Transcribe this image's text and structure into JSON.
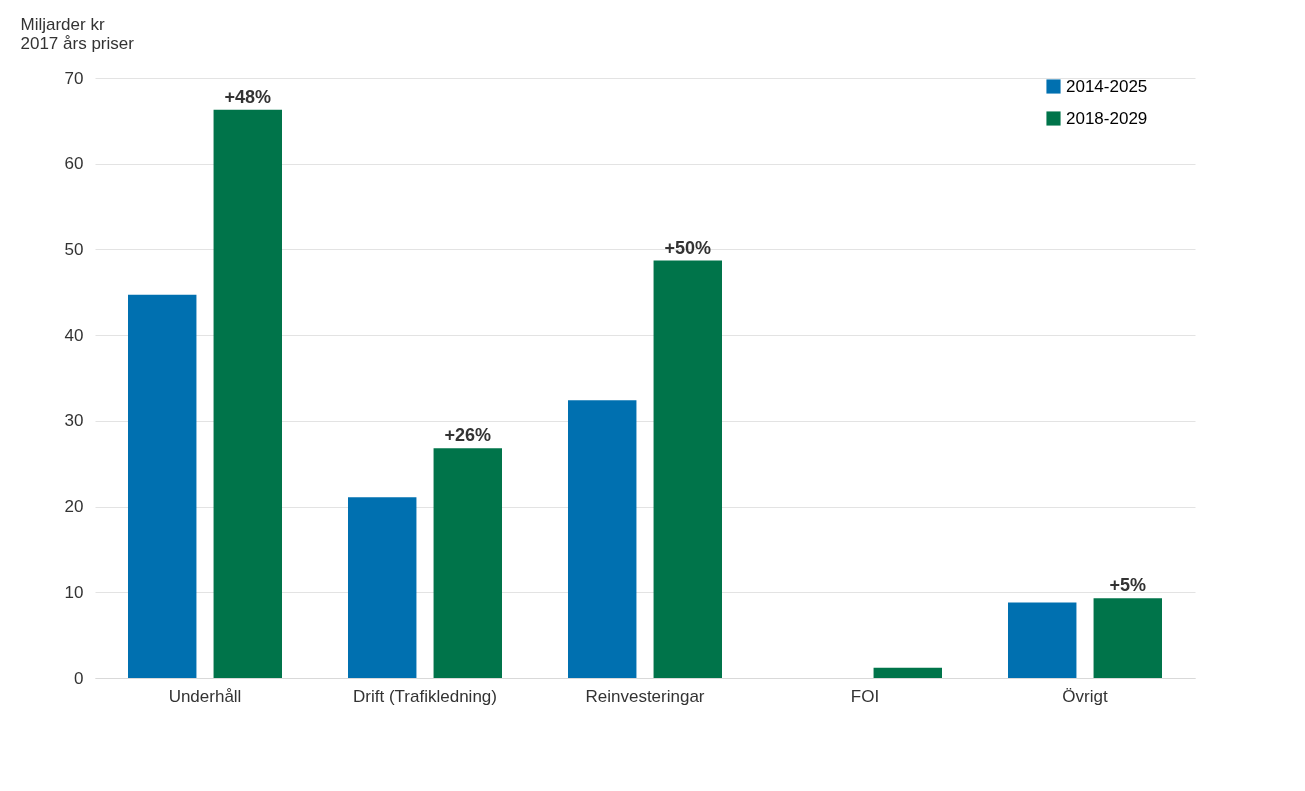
{
  "chart_data": {
    "type": "bar",
    "ylabel": "Miljarder kr\n2017 års priser",
    "categories": [
      "Underhåll",
      "Drift (Trafikledning)",
      "Reinvesteringar",
      "FOI",
      "Övrigt"
    ],
    "series": [
      {
        "name": "2014-2025",
        "color": "#0070b0",
        "values": [
          44.7,
          21.1,
          32.4,
          null,
          8.8
        ]
      },
      {
        "name": "2018-2029",
        "color": "#00744a",
        "values": [
          66.3,
          26.8,
          48.7,
          1.2,
          9.3
        ]
      }
    ],
    "annotations": [
      "+48%",
      "+26%",
      "+50%",
      "+5%"
    ],
    "ylim": [
      0,
      70
    ],
    "yticks": [
      0,
      10,
      20,
      30,
      40,
      50,
      60,
      70
    ],
    "grid": "y",
    "legend": "right"
  }
}
